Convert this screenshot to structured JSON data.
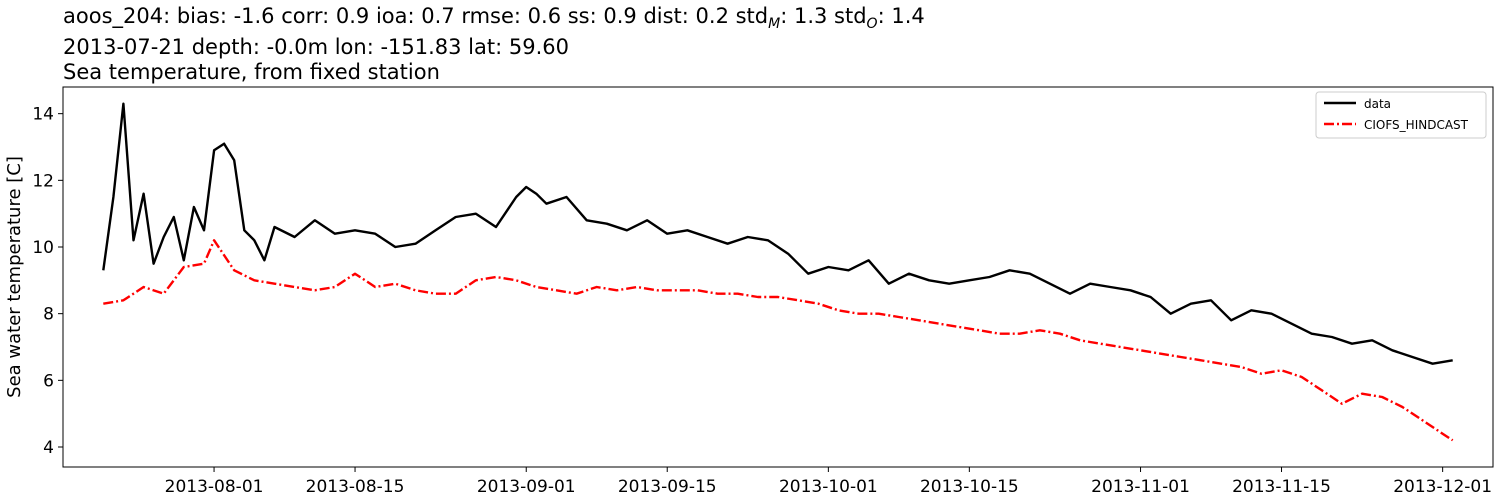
{
  "title_lines": [
    "aoos_204: bias: -1.6  corr: 0.9  ioa: 0.7  rmse: 0.6  ss: 0.9  dist: 0.2  std$_M$: 1.3  std$_O$: 1.4",
    "2013-07-21 depth: -0.0m lon: -151.83 lat: 59.60",
    "Sea temperature, from fixed station"
  ],
  "title_rendered": {
    "stats_prefix": "aoos_204: bias: -1.6  corr: 0.9  ioa: 0.7  rmse: 0.6  ss: 0.9  dist: 0.2  std",
    "sub_m": "M",
    "mid": ": 1.3  std",
    "sub_o": "O",
    "suffix": ": 1.4"
  },
  "chart_data": {
    "type": "line",
    "title": "Sea temperature, from fixed station",
    "xlabel": "",
    "ylabel": "Sea water temperature [C]",
    "x_type": "date",
    "xlim": [
      "2013-07-17",
      "2013-12-06"
    ],
    "ylim": [
      3.4,
      14.8
    ],
    "xticks": [
      "2013-08-01",
      "2013-08-15",
      "2013-09-01",
      "2013-09-15",
      "2013-10-01",
      "2013-10-15",
      "2013-11-01",
      "2013-11-15",
      "2013-12-01"
    ],
    "yticks": [
      4,
      6,
      8,
      10,
      12,
      14
    ],
    "grid": false,
    "legend_position": "upper right",
    "series": [
      {
        "name": "data",
        "color": "#000000",
        "style": "solid",
        "x": [
          "2013-07-21",
          "2013-07-22",
          "2013-07-23",
          "2013-07-24",
          "2013-07-25",
          "2013-07-26",
          "2013-07-27",
          "2013-07-28",
          "2013-07-29",
          "2013-07-30",
          "2013-07-31",
          "2013-08-01",
          "2013-08-02",
          "2013-08-03",
          "2013-08-04",
          "2013-08-05",
          "2013-08-06",
          "2013-08-07",
          "2013-08-09",
          "2013-08-11",
          "2013-08-13",
          "2013-08-15",
          "2013-08-17",
          "2013-08-19",
          "2013-08-21",
          "2013-08-23",
          "2013-08-25",
          "2013-08-27",
          "2013-08-29",
          "2013-08-31",
          "2013-09-01",
          "2013-09-02",
          "2013-09-03",
          "2013-09-05",
          "2013-09-07",
          "2013-09-09",
          "2013-09-11",
          "2013-09-13",
          "2013-09-15",
          "2013-09-17",
          "2013-09-19",
          "2013-09-21",
          "2013-09-23",
          "2013-09-25",
          "2013-09-27",
          "2013-09-29",
          "2013-10-01",
          "2013-10-03",
          "2013-10-05",
          "2013-10-07",
          "2013-10-09",
          "2013-10-11",
          "2013-10-13",
          "2013-10-15",
          "2013-10-17",
          "2013-10-19",
          "2013-10-21",
          "2013-10-23",
          "2013-10-25",
          "2013-10-27",
          "2013-10-29",
          "2013-10-31",
          "2013-11-02",
          "2013-11-04",
          "2013-11-06",
          "2013-11-08",
          "2013-11-10",
          "2013-11-12",
          "2013-11-14",
          "2013-11-16",
          "2013-11-18",
          "2013-11-20",
          "2013-11-22",
          "2013-11-24",
          "2013-11-26",
          "2013-11-28",
          "2013-11-30",
          "2013-12-02"
        ],
        "y": [
          9.3,
          11.5,
          14.3,
          10.2,
          11.6,
          9.5,
          10.3,
          10.9,
          9.6,
          11.2,
          10.5,
          12.9,
          13.1,
          12.6,
          10.5,
          10.2,
          9.6,
          10.6,
          10.3,
          10.8,
          10.4,
          10.5,
          10.4,
          10.0,
          10.1,
          10.5,
          10.9,
          11.0,
          10.6,
          11.5,
          11.8,
          11.6,
          11.3,
          11.5,
          10.8,
          10.7,
          10.5,
          10.8,
          10.4,
          10.5,
          10.3,
          10.1,
          10.3,
          10.2,
          9.8,
          9.2,
          9.4,
          9.3,
          9.6,
          8.9,
          9.2,
          9.0,
          8.9,
          9.0,
          9.1,
          9.3,
          9.2,
          8.9,
          8.6,
          8.9,
          8.8,
          8.7,
          8.5,
          8.0,
          8.3,
          8.4,
          7.8,
          8.1,
          8.0,
          7.7,
          7.4,
          7.3,
          7.1,
          7.2,
          6.9,
          6.7,
          6.5,
          6.6
        ]
      },
      {
        "name": "CIOFS_HINDCAST",
        "color": "#ff0000",
        "style": "dashdot",
        "x": [
          "2013-07-21",
          "2013-07-23",
          "2013-07-25",
          "2013-07-27",
          "2013-07-29",
          "2013-07-31",
          "2013-08-01",
          "2013-08-03",
          "2013-08-05",
          "2013-08-07",
          "2013-08-09",
          "2013-08-11",
          "2013-08-13",
          "2013-08-15",
          "2013-08-17",
          "2013-08-19",
          "2013-08-21",
          "2013-08-23",
          "2013-08-25",
          "2013-08-27",
          "2013-08-29",
          "2013-08-31",
          "2013-09-02",
          "2013-09-04",
          "2013-09-06",
          "2013-09-08",
          "2013-09-10",
          "2013-09-12",
          "2013-09-14",
          "2013-09-16",
          "2013-09-18",
          "2013-09-20",
          "2013-09-22",
          "2013-09-24",
          "2013-09-26",
          "2013-09-28",
          "2013-09-30",
          "2013-10-02",
          "2013-10-04",
          "2013-10-06",
          "2013-10-08",
          "2013-10-10",
          "2013-10-12",
          "2013-10-14",
          "2013-10-16",
          "2013-10-18",
          "2013-10-20",
          "2013-10-22",
          "2013-10-24",
          "2013-10-26",
          "2013-10-28",
          "2013-10-30",
          "2013-11-01",
          "2013-11-03",
          "2013-11-05",
          "2013-11-07",
          "2013-11-09",
          "2013-11-11",
          "2013-11-13",
          "2013-11-15",
          "2013-11-17",
          "2013-11-19",
          "2013-11-21",
          "2013-11-23",
          "2013-11-25",
          "2013-11-27",
          "2013-11-29",
          "2013-12-01",
          "2013-12-02"
        ],
        "y": [
          8.3,
          8.4,
          8.8,
          8.6,
          9.4,
          9.5,
          10.2,
          9.3,
          9.0,
          8.9,
          8.8,
          8.7,
          8.8,
          9.2,
          8.8,
          8.9,
          8.7,
          8.6,
          8.6,
          9.0,
          9.1,
          9.0,
          8.8,
          8.7,
          8.6,
          8.8,
          8.7,
          8.8,
          8.7,
          8.7,
          8.7,
          8.6,
          8.6,
          8.5,
          8.5,
          8.4,
          8.3,
          8.1,
          8.0,
          8.0,
          7.9,
          7.8,
          7.7,
          7.6,
          7.5,
          7.4,
          7.4,
          7.5,
          7.4,
          7.2,
          7.1,
          7.0,
          6.9,
          6.8,
          6.7,
          6.6,
          6.5,
          6.4,
          6.2,
          6.3,
          6.1,
          5.7,
          5.3,
          5.6,
          5.5,
          5.2,
          4.8,
          4.4,
          4.2
        ]
      }
    ]
  }
}
